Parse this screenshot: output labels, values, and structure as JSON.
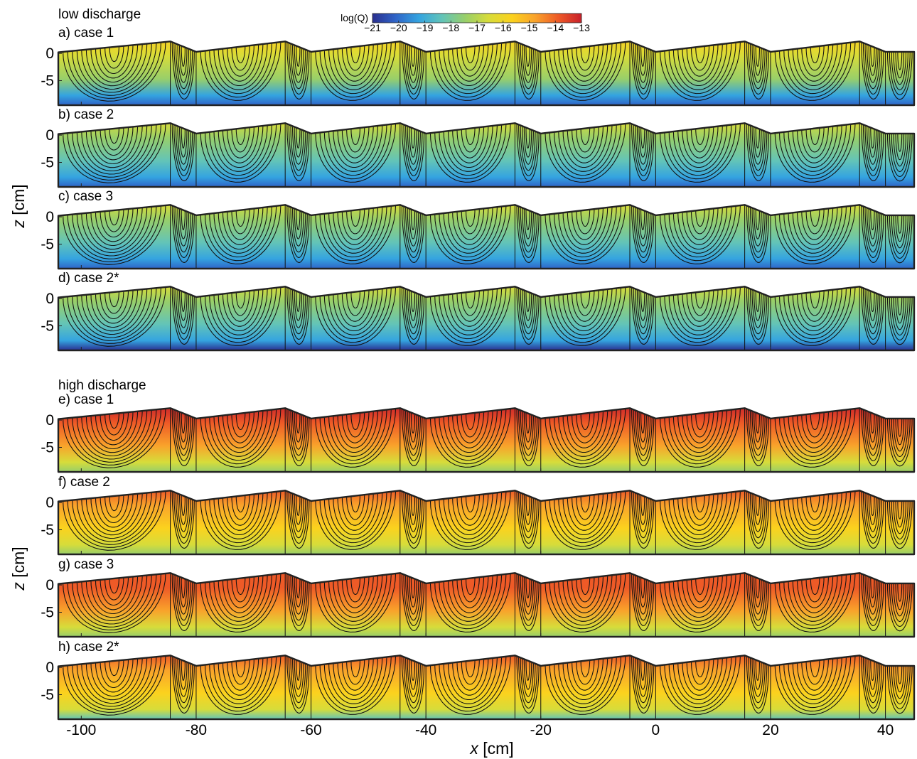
{
  "figure": {
    "groups": [
      {
        "title": "low discharge",
        "panels": [
          0,
          1,
          2,
          3
        ]
      },
      {
        "title": "high discharge",
        "panels": [
          4,
          5,
          6,
          7
        ]
      }
    ],
    "colorbar": {
      "label": "log(Q)",
      "ticks": [
        "−21",
        "−20",
        "−19",
        "−18",
        "−17",
        "−16",
        "−15",
        "−14",
        "−13"
      ],
      "range": [
        -21,
        -13
      ],
      "colors": [
        "#2a2f8f",
        "#2f64c8",
        "#34a4e0",
        "#63c4b8",
        "#98cf6a",
        "#d7dc3a",
        "#fbd21e",
        "#f9a32b",
        "#ee5a27",
        "#c71f2a"
      ]
    },
    "xlabel_var": "x",
    "xlabel_unit": " [cm]",
    "ylabel_var": "z",
    "ylabel_unit": " [cm]"
  },
  "chart_data": {
    "type": "heatmap",
    "x_ticks": [
      -100,
      -80,
      -60,
      -40,
      -20,
      0,
      20,
      40
    ],
    "y_ticks": [
      0,
      -5
    ],
    "x_tick_labels": [
      "-100",
      "-80",
      "-60",
      "-40",
      "-20",
      "0",
      "20",
      "40"
    ],
    "y_tick_labels": [
      "0",
      "-5"
    ],
    "xlim": [
      -104,
      45
    ],
    "ylim": [
      -9.5,
      2.5
    ],
    "bedform": {
      "crests": [
        -84.5,
        -64.5,
        -44.5,
        -24.5,
        -4.5,
        15.5,
        35.5
      ],
      "troughs": [
        -80,
        -60,
        -40,
        -20,
        0,
        20,
        40
      ],
      "crest_height": 2.2,
      "trough_height": 0.3,
      "domain_start": -104,
      "domain_start_height": 0.2,
      "domain_end": 45,
      "bottom": -9.5
    },
    "panels": [
      {
        "label": "a) case 1",
        "discharge": "low",
        "level": 0.48
      },
      {
        "label": "b) case 2",
        "discharge": "low",
        "level": 0.42
      },
      {
        "label": "c) case 3",
        "discharge": "low",
        "level": 0.44
      },
      {
        "label": "d) case 2*",
        "discharge": "low",
        "level": 0.4
      },
      {
        "label": "e) case 1",
        "discharge": "high",
        "level": 0.82
      },
      {
        "label": "f) case 2",
        "discharge": "high",
        "level": 0.76
      },
      {
        "label": "g) case 3",
        "discharge": "high",
        "level": 0.8
      },
      {
        "label": "h) case 2*",
        "discharge": "high",
        "level": 0.74
      }
    ]
  }
}
